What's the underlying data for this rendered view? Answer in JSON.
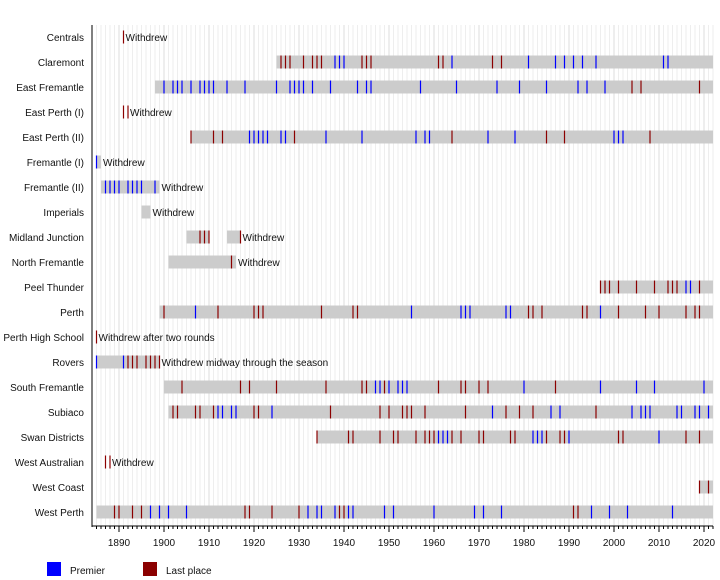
{
  "chart_data": {
    "type": "timeline",
    "xlim": [
      1884,
      2022
    ],
    "x_ticks": [
      1890,
      1900,
      1910,
      1920,
      1930,
      1940,
      1950,
      1960,
      1970,
      1980,
      1990,
      2000,
      2010,
      2020
    ],
    "grid": true,
    "legend": {
      "position": "bottom-left",
      "items": [
        {
          "label": "Premier",
          "color": "#0000ff"
        },
        {
          "label": "Last place",
          "color": "#8b0000"
        }
      ]
    },
    "colors": {
      "bar": "#cccccc",
      "premier": "#0000ff",
      "last": "#8b0000",
      "grid": "#dddddd",
      "axis": "#000000"
    },
    "teams": [
      {
        "name": "Centrals",
        "spans": [],
        "premier": [],
        "last": [
          1891
        ],
        "note": "Withdrew"
      },
      {
        "name": "Claremont",
        "spans": [
          [
            1925,
            2022
          ]
        ],
        "premier": [
          1938,
          1939,
          1940,
          1964,
          1981,
          1987,
          1989,
          1991,
          1993,
          1996,
          2011,
          2012
        ],
        "last": [
          1926,
          1927,
          1928,
          1931,
          1933,
          1934,
          1935,
          1944,
          1945,
          1946,
          1961,
          1962,
          1973,
          1975
        ],
        "note": ""
      },
      {
        "name": "East Fremantle",
        "spans": [
          [
            1898,
            2022
          ]
        ],
        "premier": [
          1900,
          1902,
          1903,
          1904,
          1906,
          1908,
          1909,
          1910,
          1911,
          1914,
          1918,
          1925,
          1928,
          1929,
          1930,
          1931,
          1933,
          1937,
          1943,
          1945,
          1946,
          1957,
          1965,
          1974,
          1979,
          1985,
          1992,
          1994,
          1998
        ],
        "last": [
          2004,
          2006,
          2019
        ],
        "note": ""
      },
      {
        "name": "East Perth (I)",
        "spans": [],
        "premier": [],
        "last": [
          1891,
          1892
        ],
        "note": "Withdrew"
      },
      {
        "name": "East Perth (II)",
        "spans": [
          [
            1906,
            2022
          ]
        ],
        "premier": [
          1919,
          1920,
          1921,
          1922,
          1923,
          1926,
          1927,
          1936,
          1944,
          1956,
          1958,
          1959,
          1972,
          1978,
          2000,
          2001,
          2002
        ],
        "last": [
          1906,
          1911,
          1913,
          1929,
          1964,
          1985,
          1989,
          2008
        ],
        "note": ""
      },
      {
        "name": "Fremantle (I)",
        "spans": [
          [
            1885,
            1886
          ]
        ],
        "premier": [
          1885
        ],
        "last": [],
        "note": "Withdrew"
      },
      {
        "name": "Fremantle (II)",
        "spans": [
          [
            1886,
            1899
          ]
        ],
        "premier": [
          1887,
          1888,
          1889,
          1890,
          1892,
          1893,
          1894,
          1895,
          1898
        ],
        "last": [],
        "note": "Withdrew"
      },
      {
        "name": "Imperials",
        "spans": [
          [
            1895,
            1897
          ]
        ],
        "premier": [],
        "last": [],
        "note": "Withdrew"
      },
      {
        "name": "Midland Junction",
        "spans": [
          [
            1905,
            1910
          ],
          [
            1914,
            1917
          ]
        ],
        "premier": [],
        "last": [
          1908,
          1909,
          1910,
          1917
        ],
        "note": "Withdrew"
      },
      {
        "name": "North Fremantle",
        "spans": [
          [
            1901,
            1916
          ]
        ],
        "premier": [],
        "last": [
          1915
        ],
        "note": "Withdrew"
      },
      {
        "name": "Peel Thunder",
        "spans": [
          [
            1997,
            2022
          ]
        ],
        "premier": [
          2016,
          2017
        ],
        "last": [
          1997,
          1998,
          1999,
          2001,
          2005,
          2009,
          2012,
          2013,
          2014,
          2019
        ],
        "note": ""
      },
      {
        "name": "Perth",
        "spans": [
          [
            1899,
            2022
          ]
        ],
        "premier": [
          1907,
          1955,
          1966,
          1967,
          1968,
          1976,
          1977,
          1997
        ],
        "last": [
          1900,
          1912,
          1920,
          1921,
          1922,
          1935,
          1942,
          1943,
          1981,
          1982,
          1984,
          1993,
          1994,
          2001,
          2007,
          2010,
          2016,
          2018,
          2019
        ],
        "note": ""
      },
      {
        "name": "Perth High School",
        "spans": [],
        "premier": [],
        "last": [
          1885
        ],
        "note": "Withdrew after two rounds"
      },
      {
        "name": "Rovers",
        "spans": [
          [
            1885,
            1899
          ]
        ],
        "premier": [
          1885,
          1891
        ],
        "last": [
          1892,
          1893,
          1894,
          1896,
          1897,
          1898,
          1899
        ],
        "note": "Withdrew midway through the season"
      },
      {
        "name": "South Fremantle",
        "spans": [
          [
            1900,
            2022
          ]
        ],
        "premier": [
          1947,
          1948,
          1950,
          1952,
          1953,
          1954,
          1980,
          1997,
          2005,
          2009,
          2020
        ],
        "last": [
          1904,
          1917,
          1919,
          1925,
          1936,
          1944,
          1945,
          1949,
          1961,
          1966,
          1967,
          1970,
          1972,
          1987
        ],
        "note": ""
      },
      {
        "name": "Subiaco",
        "spans": [
          [
            1901,
            2022
          ]
        ],
        "premier": [
          1912,
          1913,
          1915,
          1916,
          1924,
          1973,
          1986,
          1988,
          2004,
          2006,
          2007,
          2008,
          2014,
          2015,
          2018,
          2019,
          2021
        ],
        "last": [
          1902,
          1903,
          1907,
          1908,
          1911,
          1920,
          1921,
          1937,
          1948,
          1950,
          1953,
          1954,
          1955,
          1958,
          1967,
          1976,
          1979,
          1982,
          1996
        ],
        "note": ""
      },
      {
        "name": "Swan Districts",
        "spans": [
          [
            1934,
            2022
          ]
        ],
        "premier": [
          1961,
          1962,
          1963,
          1982,
          1983,
          1984,
          1990,
          2010
        ],
        "last": [
          1934,
          1941,
          1942,
          1948,
          1951,
          1952,
          1956,
          1958,
          1959,
          1960,
          1964,
          1966,
          1970,
          1971,
          1977,
          1978,
          1985,
          1988,
          1989,
          2001,
          2002,
          2016,
          2019
        ],
        "note": ""
      },
      {
        "name": "West Australian",
        "spans": [],
        "premier": [],
        "last": [
          1887,
          1888
        ],
        "note": "Withdrew"
      },
      {
        "name": "West Coast",
        "spans": [
          [
            2019,
            2022
          ]
        ],
        "premier": [],
        "last": [
          2019,
          2021
        ],
        "note": ""
      },
      {
        "name": "West Perth",
        "spans": [
          [
            1885,
            2022
          ]
        ],
        "premier": [
          1897,
          1899,
          1901,
          1905,
          1932,
          1934,
          1935,
          1938,
          1941,
          1942,
          1949,
          1951,
          1960,
          1969,
          1971,
          1975,
          1995,
          1999,
          2003,
          2013
        ],
        "last": [
          1889,
          1890,
          1893,
          1895,
          1918,
          1919,
          1924,
          1930,
          1939,
          1940,
          1991,
          1992
        ],
        "note": ""
      }
    ]
  }
}
